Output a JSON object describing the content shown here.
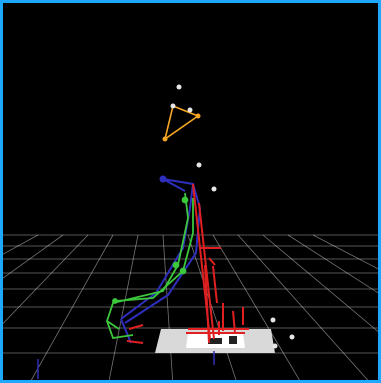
{
  "viewer": {
    "border_color": "#1ea7ff",
    "background_color": "#000000",
    "grid_color": "#ffffff",
    "floor_plate_color": "#d9d9d9",
    "camera_marker_color": "#f5a623",
    "left_limb_color": "#3cc83c",
    "right_limb_color": "#2f2fbf",
    "force_vector_color": "#e02020",
    "marker_color": "#e6e6e6"
  }
}
